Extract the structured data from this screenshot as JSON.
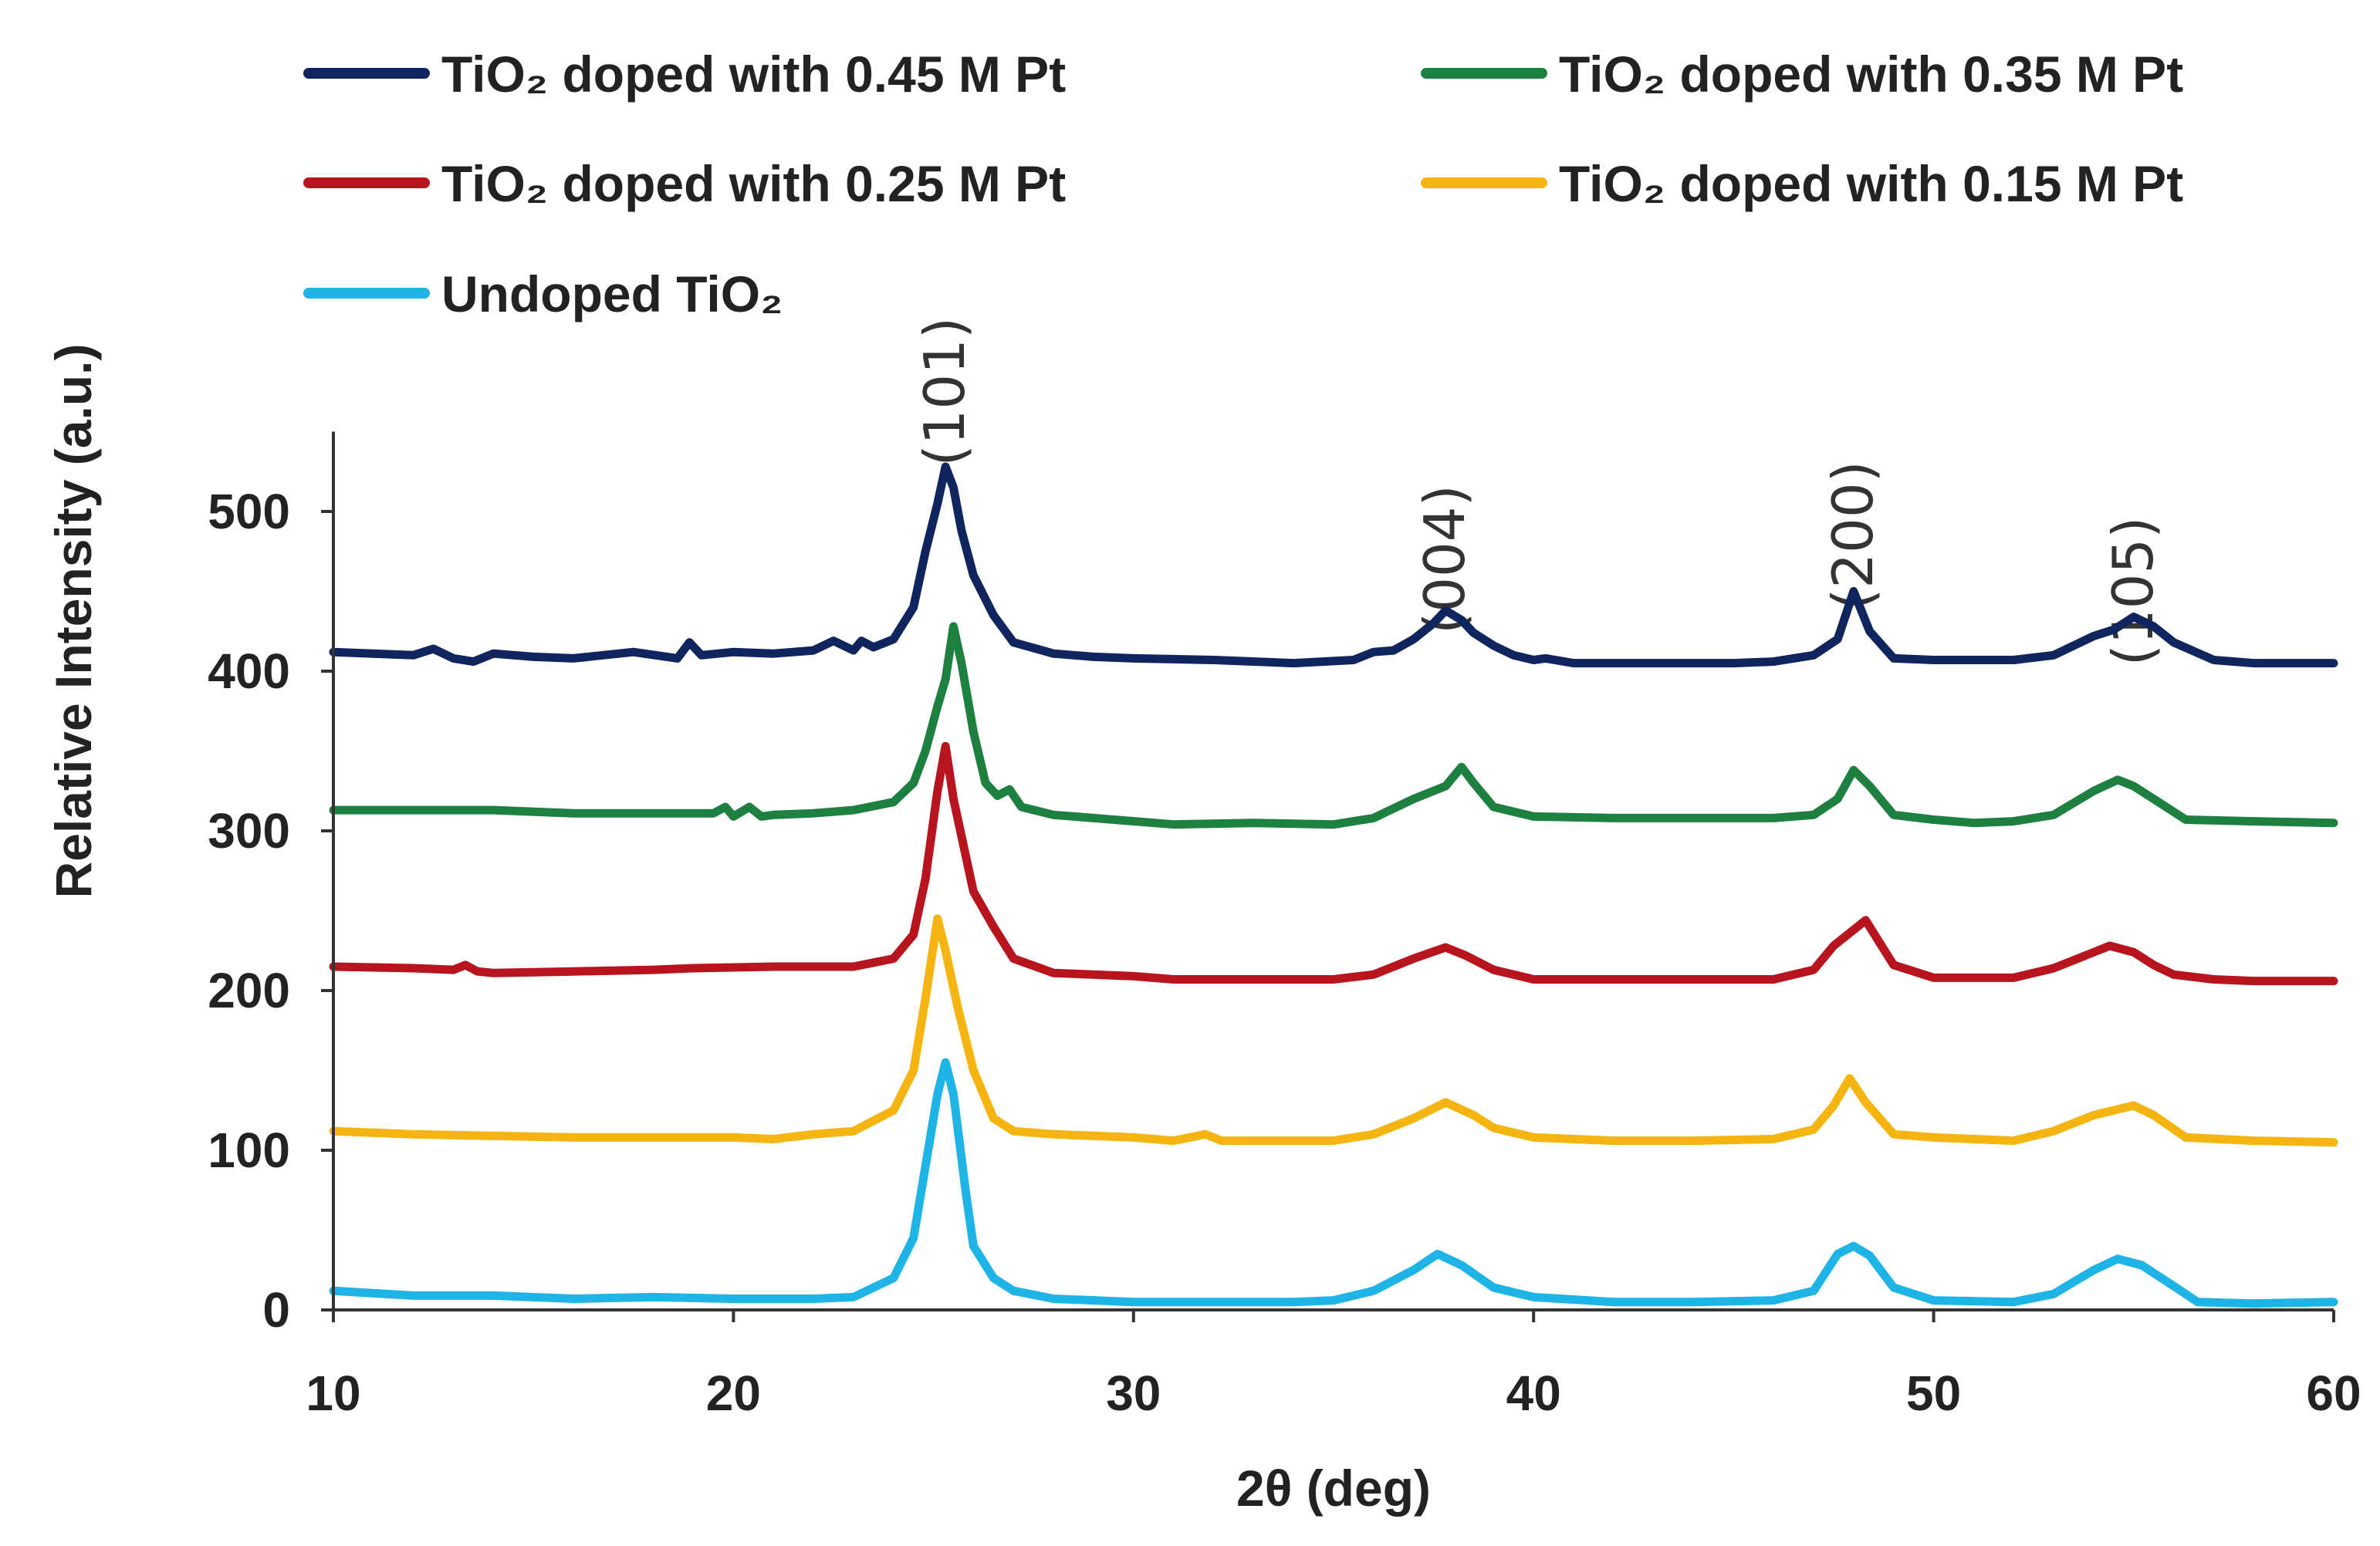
{
  "chart_data": {
    "type": "line",
    "xlabel": "2θ (deg)",
    "ylabel": "Relative Intensity (a.u.)",
    "xlim": [
      10,
      60
    ],
    "ylim": [
      0,
      550
    ],
    "xticks": [
      "10",
      "20",
      "30",
      "40",
      "50",
      "60"
    ],
    "yticks": [
      "0",
      "100",
      "200",
      "300",
      "400",
      "500"
    ],
    "legend_position": "top",
    "annotations": [
      {
        "text": "(101)",
        "x": 25.3,
        "y": 575
      },
      {
        "text": "(004)",
        "x": 37.8,
        "y": 470
      },
      {
        "text": "(200)",
        "x": 48.0,
        "y": 485
      },
      {
        "text": "(105)",
        "x": 55.0,
        "y": 450
      }
    ],
    "series": [
      {
        "name": "TiO₂ doped with 0.45 M Pt",
        "color": "#10245E",
        "points": [
          [
            10,
            412
          ],
          [
            12,
            410
          ],
          [
            12.5,
            414
          ],
          [
            13,
            408
          ],
          [
            13.5,
            406
          ],
          [
            14,
            411
          ],
          [
            15,
            409
          ],
          [
            16,
            408
          ],
          [
            17.5,
            412
          ],
          [
            18.6,
            408
          ],
          [
            18.9,
            418
          ],
          [
            19.2,
            410
          ],
          [
            20,
            412
          ],
          [
            21,
            411
          ],
          [
            22,
            413
          ],
          [
            22.5,
            419
          ],
          [
            23,
            413
          ],
          [
            23.2,
            419
          ],
          [
            23.5,
            415
          ],
          [
            24,
            420
          ],
          [
            24.5,
            440
          ],
          [
            24.8,
            475
          ],
          [
            25.1,
            505
          ],
          [
            25.3,
            528
          ],
          [
            25.5,
            515
          ],
          [
            25.7,
            488
          ],
          [
            26,
            460
          ],
          [
            26.5,
            435
          ],
          [
            27,
            418
          ],
          [
            28,
            411
          ],
          [
            29,
            409
          ],
          [
            30,
            408
          ],
          [
            32,
            407
          ],
          [
            34,
            405
          ],
          [
            35.5,
            407
          ],
          [
            36,
            412
          ],
          [
            36.5,
            413
          ],
          [
            37,
            420
          ],
          [
            37.5,
            430
          ],
          [
            37.8,
            438
          ],
          [
            38.2,
            432
          ],
          [
            38.5,
            424
          ],
          [
            39,
            416
          ],
          [
            39.5,
            410
          ],
          [
            40,
            407
          ],
          [
            40.3,
            408
          ],
          [
            41,
            405
          ],
          [
            43,
            405
          ],
          [
            45,
            405
          ],
          [
            46,
            406
          ],
          [
            47,
            410
          ],
          [
            47.6,
            420
          ],
          [
            48,
            450
          ],
          [
            48.4,
            425
          ],
          [
            49,
            408
          ],
          [
            50,
            407
          ],
          [
            52,
            407
          ],
          [
            53,
            410
          ],
          [
            54,
            422
          ],
          [
            54.5,
            426
          ],
          [
            55,
            434
          ],
          [
            55.5,
            428
          ],
          [
            56,
            418
          ],
          [
            57,
            407
          ],
          [
            58,
            405
          ],
          [
            60,
            405
          ]
        ]
      },
      {
        "name": "TiO₂ doped with 0.35 M Pt",
        "color": "#1E8040",
        "points": [
          [
            10,
            313
          ],
          [
            12,
            313
          ],
          [
            14,
            313
          ],
          [
            16,
            311
          ],
          [
            18,
            311
          ],
          [
            19.5,
            311
          ],
          [
            19.8,
            315
          ],
          [
            20,
            309
          ],
          [
            20.4,
            315
          ],
          [
            20.7,
            309
          ],
          [
            21,
            310
          ],
          [
            22,
            311
          ],
          [
            23,
            313
          ],
          [
            24,
            318
          ],
          [
            24.5,
            330
          ],
          [
            24.8,
            350
          ],
          [
            25.1,
            378
          ],
          [
            25.3,
            395
          ],
          [
            25.5,
            428
          ],
          [
            25.7,
            405
          ],
          [
            26,
            362
          ],
          [
            26.3,
            330
          ],
          [
            26.6,
            322
          ],
          [
            26.9,
            326
          ],
          [
            27.2,
            315
          ],
          [
            28,
            310
          ],
          [
            29,
            308
          ],
          [
            31,
            304
          ],
          [
            33,
            305
          ],
          [
            35,
            304
          ],
          [
            36,
            308
          ],
          [
            37,
            320
          ],
          [
            37.8,
            328
          ],
          [
            38.2,
            340
          ],
          [
            38.5,
            330
          ],
          [
            39,
            315
          ],
          [
            40,
            309
          ],
          [
            42,
            308
          ],
          [
            44,
            308
          ],
          [
            46,
            308
          ],
          [
            47,
            310
          ],
          [
            47.6,
            320
          ],
          [
            48,
            338
          ],
          [
            48.4,
            328
          ],
          [
            49,
            310
          ],
          [
            50,
            307
          ],
          [
            51,
            305
          ],
          [
            52,
            306
          ],
          [
            53,
            310
          ],
          [
            54,
            325
          ],
          [
            54.6,
            332
          ],
          [
            55,
            328
          ],
          [
            55.5,
            320
          ],
          [
            56.3,
            307
          ],
          [
            58,
            306
          ],
          [
            60,
            305
          ]
        ]
      },
      {
        "name": "TiO₂ doped with 0.25 M Pt",
        "color": "#B8141E",
        "points": [
          [
            10,
            215
          ],
          [
            12,
            214
          ],
          [
            13,
            213
          ],
          [
            13.3,
            216
          ],
          [
            13.6,
            212
          ],
          [
            14,
            211
          ],
          [
            16,
            212
          ],
          [
            18,
            213
          ],
          [
            19,
            214
          ],
          [
            21,
            215
          ],
          [
            23,
            215
          ],
          [
            24,
            220
          ],
          [
            24.5,
            235
          ],
          [
            24.8,
            270
          ],
          [
            25.1,
            325
          ],
          [
            25.3,
            353
          ],
          [
            25.5,
            320
          ],
          [
            25.8,
            285
          ],
          [
            26,
            262
          ],
          [
            26.5,
            240
          ],
          [
            27,
            220
          ],
          [
            28,
            211
          ],
          [
            30,
            209
          ],
          [
            31,
            207
          ],
          [
            33,
            207
          ],
          [
            35,
            207
          ],
          [
            36,
            210
          ],
          [
            37,
            220
          ],
          [
            37.8,
            227
          ],
          [
            38.3,
            222
          ],
          [
            39,
            213
          ],
          [
            40,
            207
          ],
          [
            42,
            207
          ],
          [
            44,
            207
          ],
          [
            46,
            207
          ],
          [
            47,
            213
          ],
          [
            47.5,
            228
          ],
          [
            48,
            238
          ],
          [
            48.3,
            244
          ],
          [
            48.6,
            232
          ],
          [
            49,
            216
          ],
          [
            50,
            208
          ],
          [
            52,
            208
          ],
          [
            53,
            214
          ],
          [
            54,
            224
          ],
          [
            54.4,
            228
          ],
          [
            55,
            224
          ],
          [
            55.5,
            216
          ],
          [
            56,
            210
          ],
          [
            57,
            207
          ],
          [
            58,
            206
          ],
          [
            60,
            206
          ]
        ]
      },
      {
        "name": "TiO₂ doped with 0.15 M Pt",
        "color": "#F5B40F",
        "points": [
          [
            10,
            112
          ],
          [
            12,
            110
          ],
          [
            14,
            109
          ],
          [
            16,
            108
          ],
          [
            18,
            108
          ],
          [
            20,
            108
          ],
          [
            21,
            107
          ],
          [
            22,
            110
          ],
          [
            23,
            112
          ],
          [
            24,
            125
          ],
          [
            24.5,
            150
          ],
          [
            24.8,
            195
          ],
          [
            25.1,
            245
          ],
          [
            25.3,
            225
          ],
          [
            25.6,
            190
          ],
          [
            26,
            150
          ],
          [
            26.5,
            120
          ],
          [
            27,
            112
          ],
          [
            28,
            110
          ],
          [
            30,
            108
          ],
          [
            31,
            106
          ],
          [
            31.8,
            110
          ],
          [
            32.2,
            106
          ],
          [
            33,
            106
          ],
          [
            35,
            106
          ],
          [
            36,
            110
          ],
          [
            37,
            120
          ],
          [
            37.8,
            130
          ],
          [
            38.5,
            122
          ],
          [
            39,
            114
          ],
          [
            40,
            108
          ],
          [
            42,
            106
          ],
          [
            44,
            106
          ],
          [
            46,
            107
          ],
          [
            47,
            113
          ],
          [
            47.5,
            128
          ],
          [
            47.9,
            145
          ],
          [
            48.3,
            130
          ],
          [
            49,
            110
          ],
          [
            50,
            108
          ],
          [
            52,
            106
          ],
          [
            53,
            112
          ],
          [
            54,
            122
          ],
          [
            55,
            128
          ],
          [
            55.5,
            122
          ],
          [
            56.3,
            108
          ],
          [
            58,
            106
          ],
          [
            60,
            105
          ]
        ]
      },
      {
        "name": "Undoped TiO₂",
        "color": "#1EB4E6",
        "points": [
          [
            10,
            12
          ],
          [
            12,
            9
          ],
          [
            14,
            9
          ],
          [
            16,
            7
          ],
          [
            18,
            8
          ],
          [
            20,
            7
          ],
          [
            22,
            7
          ],
          [
            23,
            8
          ],
          [
            24,
            20
          ],
          [
            24.5,
            45
          ],
          [
            24.8,
            90
          ],
          [
            25.1,
            135
          ],
          [
            25.3,
            155
          ],
          [
            25.5,
            135
          ],
          [
            25.8,
            75
          ],
          [
            26,
            40
          ],
          [
            26.5,
            20
          ],
          [
            27,
            12
          ],
          [
            28,
            7
          ],
          [
            30,
            5
          ],
          [
            32,
            5
          ],
          [
            34,
            5
          ],
          [
            35,
            6
          ],
          [
            36,
            12
          ],
          [
            37,
            25
          ],
          [
            37.6,
            35
          ],
          [
            38.2,
            28
          ],
          [
            39,
            14
          ],
          [
            40,
            8
          ],
          [
            42,
            5
          ],
          [
            44,
            5
          ],
          [
            46,
            6
          ],
          [
            47,
            12
          ],
          [
            47.6,
            35
          ],
          [
            48,
            40
          ],
          [
            48.4,
            34
          ],
          [
            49,
            14
          ],
          [
            50,
            6
          ],
          [
            52,
            5
          ],
          [
            53,
            10
          ],
          [
            54,
            25
          ],
          [
            54.6,
            32
          ],
          [
            55.2,
            28
          ],
          [
            56,
            15
          ],
          [
            56.6,
            5
          ],
          [
            58,
            4
          ],
          [
            60,
            5
          ]
        ]
      }
    ]
  }
}
